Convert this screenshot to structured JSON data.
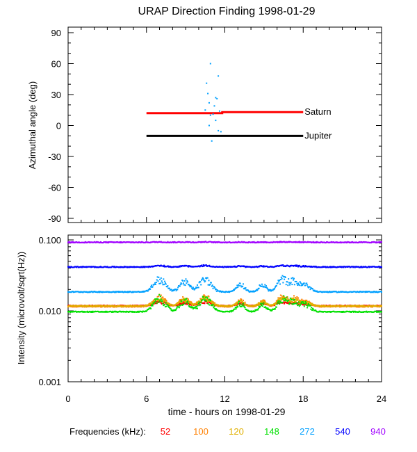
{
  "chart_data": [
    {
      "type": "scatter",
      "title": "URAP Direction Finding  1998-01-29",
      "ylabel": "Azimuthal angle (deg)",
      "xlim": [
        0,
        24
      ],
      "ylim": [
        -90,
        90
      ],
      "yticks": [
        90,
        60,
        30,
        0,
        -30,
        -60,
        -90
      ],
      "yticks_labels": [
        "90",
        "60",
        "30",
        "0",
        "-30",
        "-60",
        "-90"
      ],
      "reference_lines": [
        {
          "name": "Saturn",
          "color": "#ff0000",
          "x": [
            6,
            11.8,
            11.8,
            18
          ],
          "y": [
            12,
            12,
            13,
            13
          ]
        },
        {
          "name": "Jupiter",
          "color": "#000000",
          "x": [
            6,
            18
          ],
          "y": [
            -10,
            -10
          ]
        }
      ],
      "points": {
        "color": "#00a0ff",
        "x": [
          10.9,
          10.6,
          11.5,
          10.7,
          11.3,
          11.4,
          10.8,
          11.2,
          10.5,
          11.6,
          10.9,
          11.1,
          11.3,
          10.8,
          11.5,
          11.7,
          11.0
        ],
        "y": [
          60,
          41,
          48,
          31,
          27,
          26,
          22,
          19,
          15,
          14,
          10,
          11,
          5,
          0,
          -5,
          -6,
          -15
        ]
      }
    },
    {
      "type": "scatter",
      "xlabel": "time - hours on 1998-01-29",
      "ylabel": "Intensity (microvolt/sqrt(Hz))",
      "xlim": [
        0,
        24
      ],
      "ylim": [
        0.001,
        0.1
      ],
      "yscale": "log",
      "xticks": [
        0,
        6,
        12,
        18,
        24
      ],
      "xticks_labels": [
        "0",
        "6",
        "12",
        "18",
        "24"
      ],
      "yticks": [
        0.1,
        0.01,
        0.001
      ],
      "yticks_labels": [
        "0.100",
        "0.010",
        "0.001"
      ],
      "legend_label": "Frequencies (kHz):",
      "series": [
        {
          "name": "52",
          "color": "#ff0000",
          "base": 0.0118,
          "amp": 0.0015
        },
        {
          "name": "100",
          "color": "#ff8000",
          "base": 0.0115,
          "amp": 0.004
        },
        {
          "name": "120",
          "color": "#e0b000",
          "base": 0.0117,
          "amp": 0.003
        },
        {
          "name": "148",
          "color": "#00e000",
          "base": 0.0097,
          "amp": 0.005
        },
        {
          "name": "272",
          "color": "#00a0ff",
          "base": 0.0185,
          "amp": 0.009
        },
        {
          "name": "540",
          "color": "#0000ff",
          "base": 0.0415,
          "amp": 0.002
        },
        {
          "name": "940",
          "color": "#a000ff",
          "base": 0.0925,
          "amp": 0.001
        }
      ]
    }
  ]
}
